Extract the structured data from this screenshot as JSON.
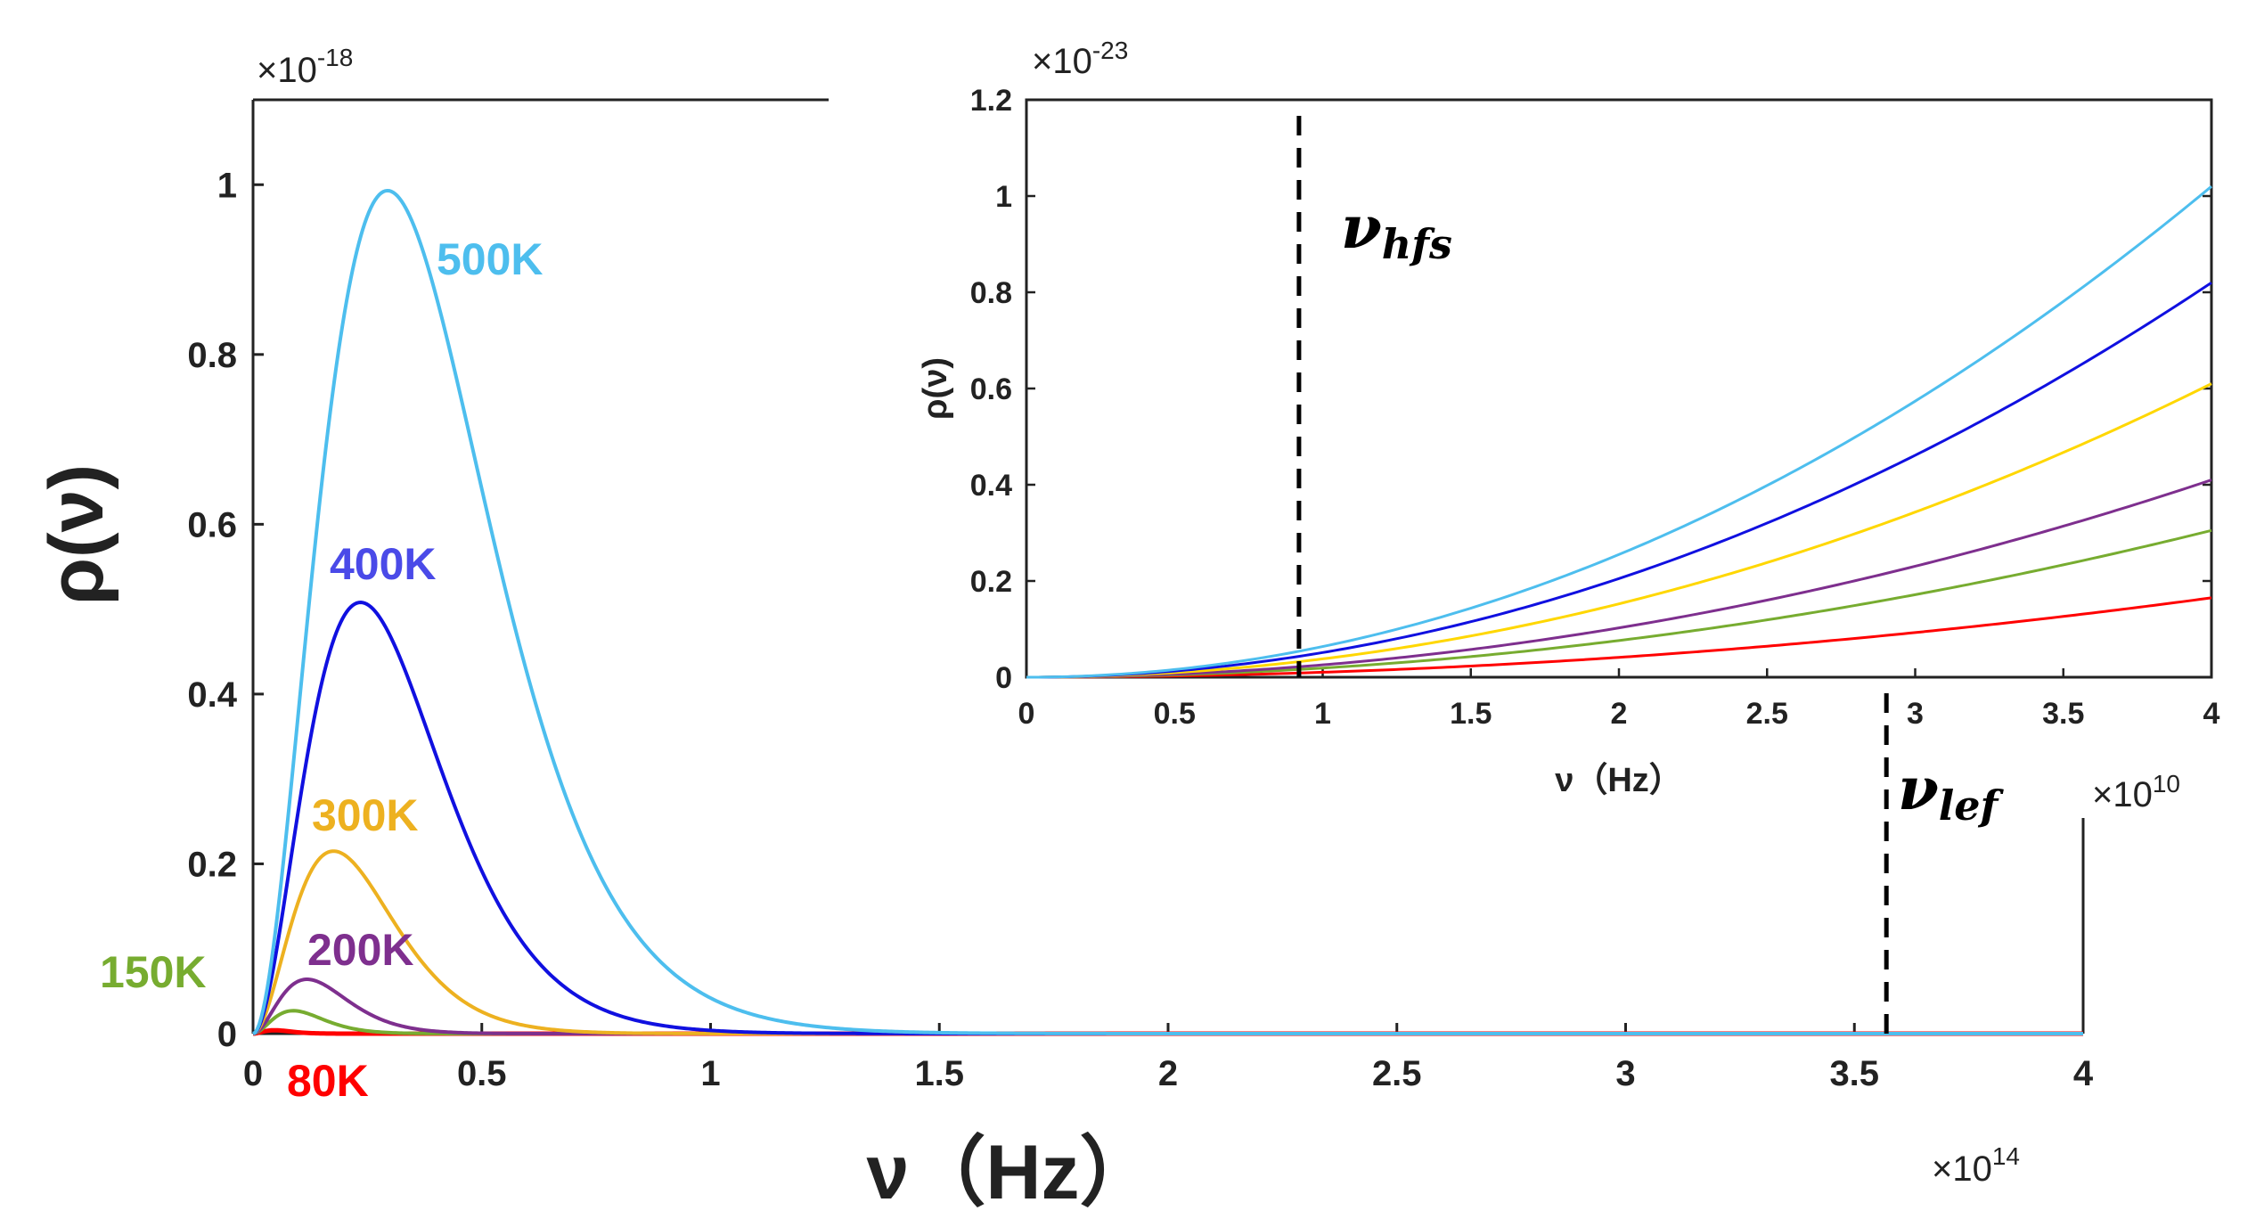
{
  "chart_data": [
    {
      "type": "line",
      "id": "main",
      "xlabel": "ν（Hz）",
      "ylabel": "ρ(ν)",
      "xlim": [
        0,
        4
      ],
      "ylim": [
        0,
        1.1
      ],
      "x_multiplier": "×10",
      "x_exponent": "14",
      "y_multiplier": "×10",
      "y_exponent": "-18",
      "xticks": [
        0,
        0.5,
        1,
        1.5,
        2,
        2.5,
        3,
        3.5,
        4
      ],
      "xtick_labels": [
        "0",
        "0.5",
        "1",
        "1.5",
        "2",
        "2.5",
        "3",
        "3.5",
        "4"
      ],
      "yticks": [
        0,
        0.2,
        0.4,
        0.6,
        0.8,
        1
      ],
      "ytick_labels": [
        "0",
        "0.2",
        "0.4",
        "0.6",
        "0.8",
        "1"
      ],
      "series": [
        {
          "name": "500K",
          "color": "#4DBEEE",
          "peak_x": 0.294,
          "peak_y": 0.993
        },
        {
          "name": "400K",
          "color": "#1010E0",
          "peak_x": 0.235,
          "peak_y": 0.508
        },
        {
          "name": "300K",
          "color": "#EDB120",
          "peak_x": 0.176,
          "peak_y": 0.215
        },
        {
          "name": "200K",
          "color": "#7E2F8E",
          "peak_x": 0.118,
          "peak_y": 0.064
        },
        {
          "name": "150K",
          "color": "#77AC30",
          "peak_x": 0.088,
          "peak_y": 0.027
        },
        {
          "name": "80K",
          "color": "#FF0000",
          "peak_x": 0.047,
          "peak_y": 0.004
        }
      ],
      "annotations": [
        {
          "label": "ν",
          "subscript": "lef",
          "x": 3.57
        }
      ]
    },
    {
      "type": "line",
      "id": "inset",
      "xlabel": "ν（Hz）",
      "ylabel": "ρ(ν)",
      "xlim": [
        0,
        4
      ],
      "ylim": [
        0,
        1.2
      ],
      "x_multiplier": "×10",
      "x_exponent": "10",
      "y_multiplier": "×10",
      "y_exponent": "-23",
      "xticks": [
        0,
        0.5,
        1,
        1.5,
        2,
        2.5,
        3,
        3.5,
        4
      ],
      "xtick_labels": [
        "0",
        "0.5",
        "1",
        "1.5",
        "2",
        "2.5",
        "3",
        "3.5",
        "4"
      ],
      "yticks": [
        0,
        0.2,
        0.4,
        0.6,
        0.8,
        1,
        1.2
      ],
      "ytick_labels": [
        "0",
        "0.2",
        "0.4",
        "0.6",
        "0.8",
        "1",
        "1.2"
      ],
      "series": [
        {
          "name": "500K",
          "color": "#4DBEEE",
          "end_y": 1.02
        },
        {
          "name": "400K",
          "color": "#1010E0",
          "end_y": 0.82
        },
        {
          "name": "300K",
          "color": "#FFD700",
          "end_y": 0.61
        },
        {
          "name": "200K",
          "color": "#7E2F8E",
          "end_y": 0.41
        },
        {
          "name": "150K",
          "color": "#77AC30",
          "end_y": 0.305
        },
        {
          "name": "80K",
          "color": "#FF0000",
          "end_y": 0.165
        }
      ],
      "annotations": [
        {
          "label": "ν",
          "subscript": "hfs",
          "x": 0.92
        }
      ]
    }
  ]
}
